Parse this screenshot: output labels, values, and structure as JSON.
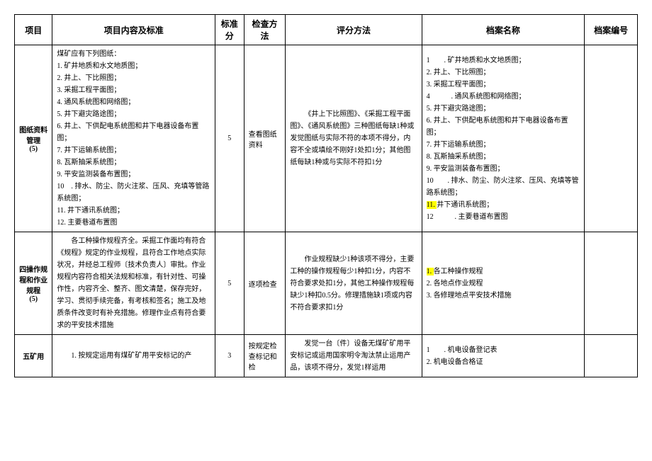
{
  "headers": {
    "project": "项目",
    "content": "项目内容及标准",
    "score": "标准分",
    "method": "检查方法",
    "grading": "评分方法",
    "file": "档案名称",
    "fileno": "档案编号"
  },
  "rows": [
    {
      "project_label": "图纸资料管理",
      "project_pts": "(5)",
      "content_intro": "煤矿应有下列图纸：",
      "content_items": [
        "1. 矿井地质和水文地质图；",
        "2. 井上、下比照图；",
        "3. 采掘工程平面图；",
        "4. 通风系统图和网络图；",
        "5. 井下避灾路途图；",
        "6. 井上、下供配电系统图和井下电器设备布置图；",
        "7. 井下运输系统图；",
        "8. 瓦斯抽采系统图；",
        "9. 平安监测装备布置图；",
        "10　. 排水、防尘、防火注浆、压风、充填等管路系统图；",
        "11. 井下通讯系统图；",
        "12. 主要巷道布置图"
      ],
      "score": "5",
      "method": "查看图纸资料",
      "grading": "《井上下比照图》、《采掘工程平面图》、《通风系统图》三种图纸每缺1种或发觉图纸与实际不符的本项不得分，内容不全或填绘不刚好1处扣1分；其他图纸每缺1种或与实际不符扣1分",
      "file_items": [
        {
          "text": "1　　. 矿井地质和水文地质图；",
          "hl": false
        },
        {
          "text": "2. 井上、下比照图；",
          "hl": false
        },
        {
          "text": "3. 采掘工程平面图；",
          "hl": false
        },
        {
          "text": "4　　　. 通风系统图和网络图；",
          "hl": false
        },
        {
          "text": "5. 井下避灾路途图；",
          "hl": false
        },
        {
          "text": "6. 井上、下供配电系统图和井下电器设备布置图；",
          "hl": false
        },
        {
          "text": "7. 井下运输系统图；",
          "hl": false
        },
        {
          "text": "8. 瓦斯抽采系统图；",
          "hl": false
        },
        {
          "text": "9. 平安监测装备布置图；",
          "hl": false
        },
        {
          "text": "10　　. 排水、防尘、防火注浆、压风、充填等管路系统图；",
          "hl": false
        },
        {
          "text": "11. ",
          "hl": true,
          "suffix": "井下通讯系统图；"
        },
        {
          "text": "12　　　. 主要巷道布置图",
          "hl": false
        }
      ]
    },
    {
      "project_label": "四操作规程和作业规程",
      "project_pts": "(5)",
      "content_text": "各工种操作规程齐全。采掘工作面均有符合《规程》规定的作业规程，且符合工作地点实际状况，并经总工程师〔技术负责人〕审批。作业规程内容符合相关法规和标准，有针对性、可操作性，内容齐全、整齐、图文清楚，保存完好，学习、贯彻手续完备，有考核和签名；施工及地质条件改变时有补充措施。修理作业点有符合要求的平安技术措施",
      "score": "5",
      "method": "逐项检查",
      "grading": "作业规程缺少1种该项不得分，主要工种的操作规程每少1种扣1分，内容不符合要求处扣1分，其他工种操作规程每缺少1种扣0.5分。修理措施缺1项或内容不符合要求扣1分",
      "file_items": [
        {
          "text": "1. ",
          "hl": true,
          "suffix": "各工种操作规程"
        },
        {
          "text": "2. 各地点作业规程",
          "hl": false
        },
        {
          "text": "3. 各修理地点平安技术措施",
          "hl": false
        }
      ]
    },
    {
      "project_label": "五矿用",
      "project_pts": "",
      "content_text": "1. 按规定运用有煤矿矿用平安标记的产",
      "score": "3",
      "method": "按规定检查标记和检",
      "grading": "发觉一台〔件〕设备无煤矿矿用平安标记或运用国家明令淘汰禁止运用产品，该项不得分，发觉1样运用",
      "file_items": [
        {
          "text": "1　　. 机电设备登记表",
          "hl": false
        },
        {
          "text": "2. 机电设备合格证",
          "hl": false
        }
      ]
    }
  ]
}
